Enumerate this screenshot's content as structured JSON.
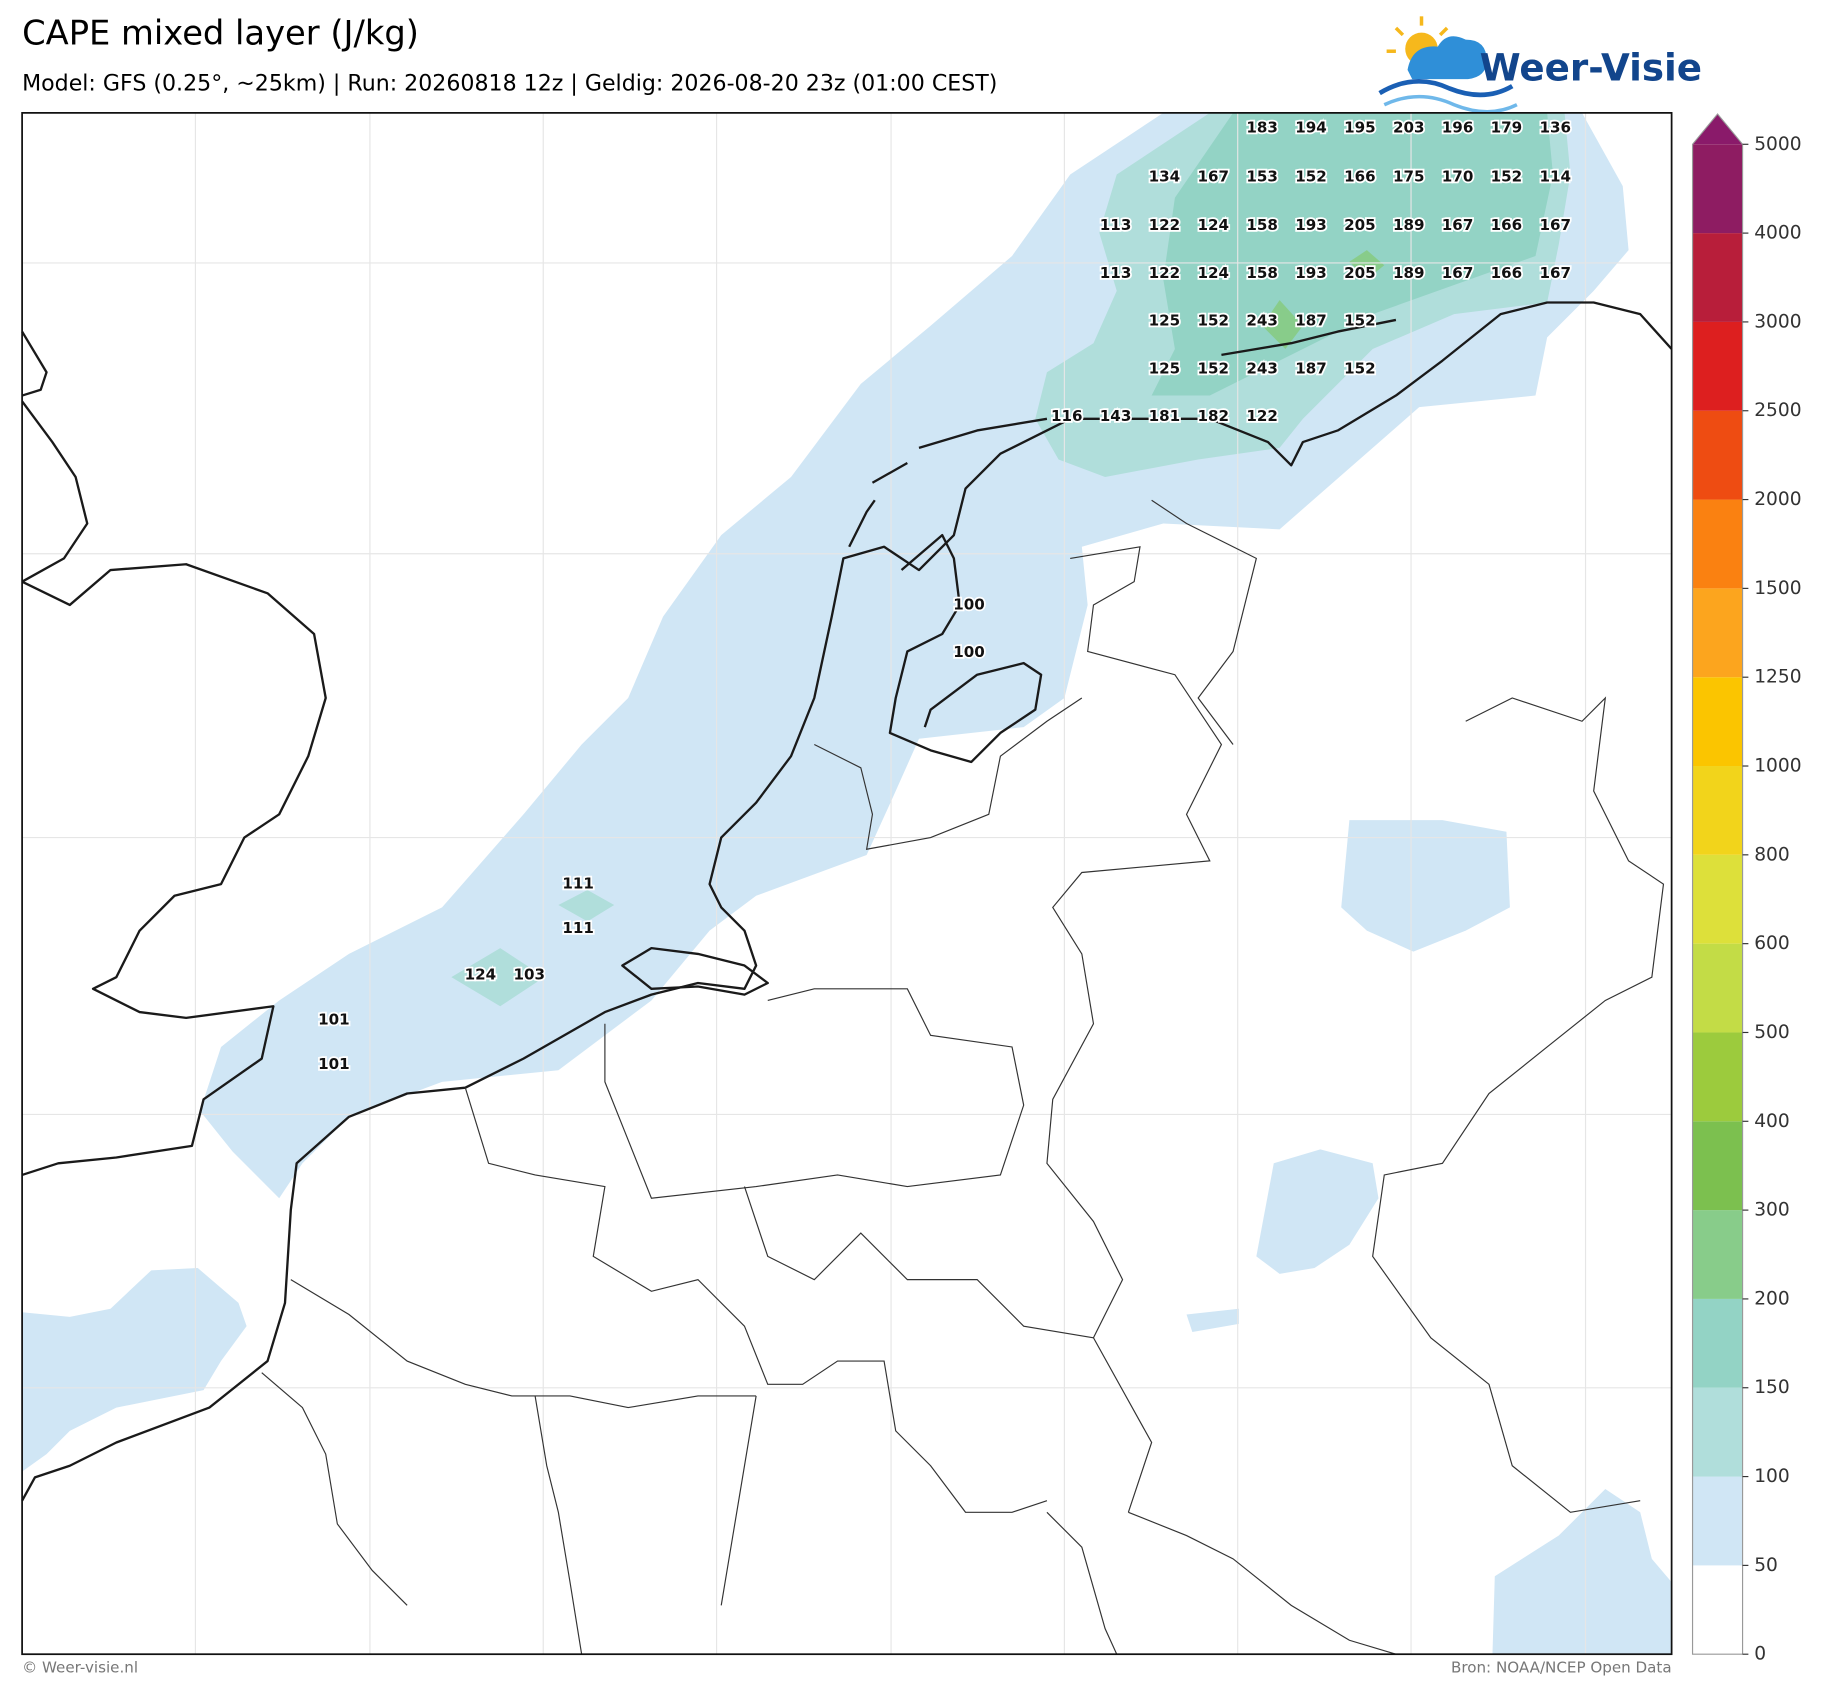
{
  "header": {
    "title": "CAPE mixed layer (J/kg)",
    "subtitle": "Model: GFS (0.25°, ~25km)  |  Run: 20260818 12z  |  Geldig: 2026-08-20 23z (01:00 CEST)"
  },
  "logo": {
    "text": "Weer-Visie"
  },
  "map": {
    "labels": [
      [
        183,
        194,
        195,
        203,
        196,
        179,
        136
      ],
      [
        134,
        167,
        153,
        152,
        166,
        175,
        170,
        152,
        114
      ],
      [
        113,
        122,
        124,
        158,
        193,
        205,
        189,
        167,
        166,
        167
      ],
      [
        113,
        122,
        124,
        158,
        193,
        205,
        189,
        167,
        166,
        167
      ],
      [
        125,
        152,
        243,
        187,
        152
      ],
      [
        125,
        152,
        243,
        187,
        152
      ],
      [
        116,
        143,
        181,
        182,
        122
      ],
      [
        100
      ],
      [
        100
      ],
      [
        111
      ],
      [
        111
      ],
      [
        124,
        103
      ],
      [
        101
      ],
      [
        101
      ]
    ]
  },
  "colorbar": {
    "levels": [
      0,
      50,
      100,
      150,
      200,
      300,
      400,
      500,
      600,
      800,
      1000,
      1250,
      1500,
      2000,
      2500,
      3000,
      4000,
      5000
    ],
    "colors": [
      "#ffffff",
      "#d0e6f5",
      "#b0dedb",
      "#93d3c5",
      "#88cc8a",
      "#7cc04f",
      "#9ccb3d",
      "#c3dc46",
      "#dde03a",
      "#f2d41b",
      "#fbc500",
      "#fca51e",
      "#fa8111",
      "#ee4c12",
      "#dd1f1f",
      "#b81e3a",
      "#8e1c62"
    ],
    "extend_color": "#8a1a6a"
  },
  "footer": {
    "left": "© Weer-visie.nl",
    "right": "Bron: NOAA/NCEP Open Data"
  }
}
